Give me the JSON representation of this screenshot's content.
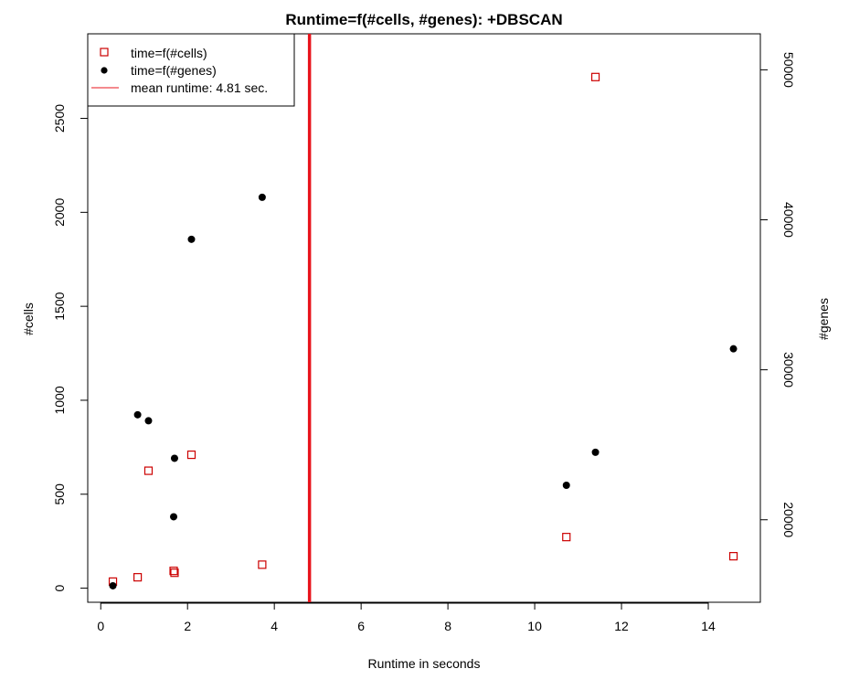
{
  "chart_data": {
    "type": "scatter",
    "title": "Runtime=f(#cells, #genes): +DBSCAN",
    "xlabel": "Runtime in seconds",
    "ylabel_left": "#cells",
    "ylabel_right": "#genes",
    "xlim": [
      -0.3,
      15.2
    ],
    "ylim_left": [
      -75,
      2950
    ],
    "ylim_right": [
      14500,
      52400
    ],
    "x_ticks": [
      0,
      2,
      4,
      6,
      8,
      10,
      12,
      14
    ],
    "y_left_ticks": [
      0,
      500,
      1000,
      1500,
      2000,
      2500
    ],
    "y_right_ticks": [
      20000,
      30000,
      40000,
      50000
    ],
    "grid": false,
    "legend_position": "top-left",
    "series": [
      {
        "name": "time=f(#cells)",
        "axis": "left",
        "marker": "open-square",
        "color": "#cc0000",
        "points": [
          {
            "x": 0.28,
            "y": 35
          },
          {
            "x": 0.85,
            "y": 58
          },
          {
            "x": 1.1,
            "y": 625
          },
          {
            "x": 1.68,
            "y": 92
          },
          {
            "x": 1.7,
            "y": 82
          },
          {
            "x": 2.09,
            "y": 710
          },
          {
            "x": 3.72,
            "y": 125
          },
          {
            "x": 10.73,
            "y": 272
          },
          {
            "x": 11.4,
            "y": 2720
          },
          {
            "x": 14.58,
            "y": 170
          }
        ]
      },
      {
        "name": "time=f(#genes)",
        "axis": "right",
        "marker": "filled-circle",
        "color": "#000000",
        "points": [
          {
            "x": 0.28,
            "y": 15600
          },
          {
            "x": 0.85,
            "y": 27000
          },
          {
            "x": 1.1,
            "y": 26600
          },
          {
            "x": 1.68,
            "y": 20200
          },
          {
            "x": 1.7,
            "y": 24100
          },
          {
            "x": 2.09,
            "y": 38700
          },
          {
            "x": 3.72,
            "y": 41500
          },
          {
            "x": 10.73,
            "y": 22300
          },
          {
            "x": 11.4,
            "y": 24500
          },
          {
            "x": 14.58,
            "y": 31400
          }
        ]
      }
    ],
    "reference_line": {
      "name": "mean runtime: 4.81 sec.",
      "orientation": "vertical",
      "x": 4.81,
      "color": "#e8141c"
    }
  }
}
